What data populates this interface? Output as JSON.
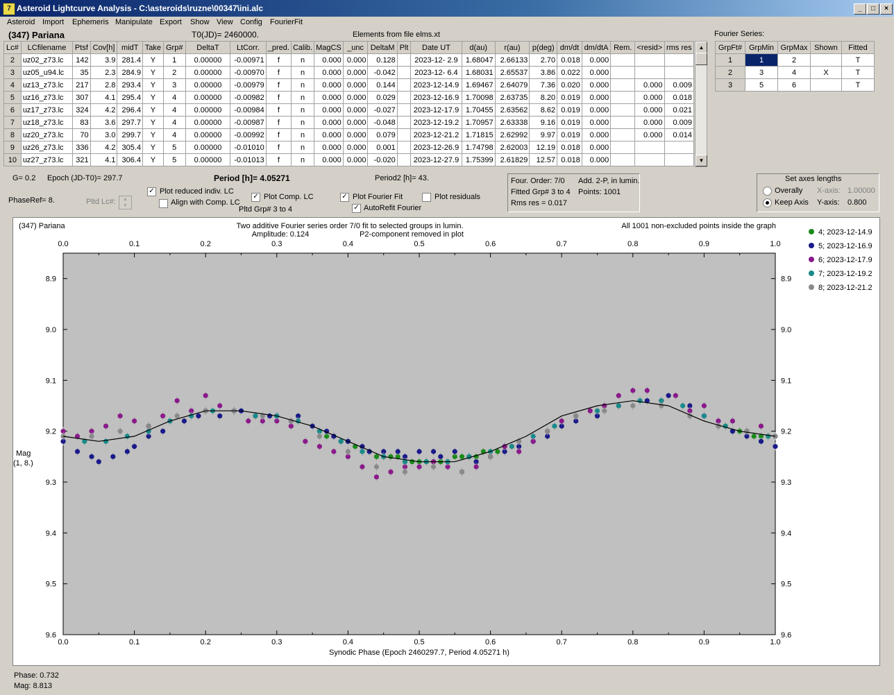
{
  "window": {
    "title": "Asteroid Lightcurve Analysis - C:\\asteroids\\ruzne\\00347\\ini.alc"
  },
  "menu": [
    "Asteroid",
    "Import",
    "Ephemeris",
    "Manipulate",
    "Export",
    "Show",
    "View",
    "Config",
    "FourierFit"
  ],
  "header": {
    "asteroid": "(347) Pariana",
    "t0": "T0(JD)= 2460000.",
    "elements": "Elements from file elms.xt",
    "fourier_label": "Fourier Series:"
  },
  "lc_table": {
    "columns": [
      "Lc#",
      "LCfilename",
      "Ptsf",
      "Cov[h]",
      "midT",
      "Take",
      "Grp#",
      "DeltaT",
      "LtCorr.",
      "_pred.",
      "Calib.",
      "MagCS",
      "_unc",
      "DeltaM",
      "Plt",
      "Date UT",
      "d(au)",
      "r(au)",
      "p(deg)",
      "dm/dt",
      "dm/dtA",
      "Rem.",
      "<resid>",
      "rms res"
    ],
    "rows": [
      [
        "2",
        "uz02_z73.lc",
        "142",
        "3.9",
        "281.4",
        "Y",
        "1",
        "0.00000",
        "-0.00971",
        "f",
        "n",
        "0.000",
        "0.000",
        "0.128",
        "",
        "2023-12- 2.9",
        "1.68047",
        "2.66133",
        "2.70",
        "0.018",
        "0.000",
        "",
        "",
        ""
      ],
      [
        "3",
        "uz05_u94.lc",
        "35",
        "2.3",
        "284.9",
        "Y",
        "2",
        "0.00000",
        "-0.00970",
        "f",
        "n",
        "0.000",
        "0.000",
        "-0.042",
        "",
        "2023-12- 6.4",
        "1.68031",
        "2.65537",
        "3.86",
        "0.022",
        "0.000",
        "",
        "",
        ""
      ],
      [
        "4",
        "uz13_z73.lc",
        "217",
        "2.8",
        "293.4",
        "Y",
        "3",
        "0.00000",
        "-0.00979",
        "f",
        "n",
        "0.000",
        "0.000",
        "0.144",
        "",
        "2023-12-14.9",
        "1.69467",
        "2.64079",
        "7.36",
        "0.020",
        "0.000",
        "",
        "0.000",
        "0.009"
      ],
      [
        "5",
        "uz16_z73.lc",
        "307",
        "4.1",
        "295.4",
        "Y",
        "4",
        "0.00000",
        "-0.00982",
        "f",
        "n",
        "0.000",
        "0.000",
        "0.029",
        "",
        "2023-12-16.9",
        "1.70098",
        "2.63735",
        "8.20",
        "0.019",
        "0.000",
        "",
        "0.000",
        "0.018"
      ],
      [
        "6",
        "uz17_z73.lc",
        "324",
        "4.2",
        "296.4",
        "Y",
        "4",
        "0.00000",
        "-0.00984",
        "f",
        "n",
        "0.000",
        "0.000",
        "-0.027",
        "",
        "2023-12-17.9",
        "1.70455",
        "2.63562",
        "8.62",
        "0.019",
        "0.000",
        "",
        "0.000",
        "0.021"
      ],
      [
        "7",
        "uz18_z73.lc",
        "83",
        "3.6",
        "297.7",
        "Y",
        "4",
        "0.00000",
        "-0.00987",
        "f",
        "n",
        "0.000",
        "0.000",
        "-0.048",
        "",
        "2023-12-19.2",
        "1.70957",
        "2.63338",
        "9.16",
        "0.019",
        "0.000",
        "",
        "0.000",
        "0.009"
      ],
      [
        "8",
        "uz20_z73.lc",
        "70",
        "3.0",
        "299.7",
        "Y",
        "4",
        "0.00000",
        "-0.00992",
        "f",
        "n",
        "0.000",
        "0.000",
        "0.079",
        "",
        "2023-12-21.2",
        "1.71815",
        "2.62992",
        "9.97",
        "0.019",
        "0.000",
        "",
        "0.000",
        "0.014"
      ],
      [
        "9",
        "uz26_z73.lc",
        "336",
        "4.2",
        "305.4",
        "Y",
        "5",
        "0.00000",
        "-0.01010",
        "f",
        "n",
        "0.000",
        "0.000",
        "0.001",
        "",
        "2023-12-26.9",
        "1.74798",
        "2.62003",
        "12.19",
        "0.018",
        "0.000",
        "",
        "",
        ""
      ],
      [
        "10",
        "uz27_z73.lc",
        "321",
        "4.1",
        "306.4",
        "Y",
        "5",
        "0.00000",
        "-0.01013",
        "f",
        "n",
        "0.000",
        "0.000",
        "-0.020",
        "",
        "2023-12-27.9",
        "1.75399",
        "2.61829",
        "12.57",
        "0.018",
        "0.000",
        "",
        "",
        ""
      ]
    ]
  },
  "fourier_table": {
    "columns": [
      "GrpFt#",
      "GrpMin",
      "GrpMax",
      "Shown",
      "Fitted"
    ],
    "rows": [
      [
        "1",
        "1",
        "2",
        "",
        "T"
      ],
      [
        "2",
        "3",
        "4",
        "X",
        "T"
      ],
      [
        "3",
        "5",
        "6",
        "",
        "T"
      ]
    ]
  },
  "controls": {
    "g": "G= 0.2",
    "epoch": "Epoch (JD-T0)= 297.7",
    "period": "Period [h]= 4.05271",
    "period2": "Period2 [h]= 43.",
    "phaseref": "PhaseRef= 8.",
    "pltd_lc": "Pltd Lc#:",
    "plot_reduced": "Plot reduced indiv. LC",
    "align_comp": "Align with Comp. LC",
    "plot_comp": "Plot Comp. LC",
    "pltd_grp": "Pltd Grp#  3   to   4",
    "plot_fourier": "Plot Fourier Fit",
    "plot_residuals": "Plot residuals",
    "autorefit": "AutoRefit Fourier"
  },
  "fit_info": {
    "order": "Four. Order:  7/0",
    "add": "Add. 2-P, in lumin.",
    "fitted": "Fitted Grp# 3 to 4",
    "points": "Points: 1001",
    "rms": "Rms res      = 0.017"
  },
  "axes_panel": {
    "title": "Set axes lengths",
    "overally": "Overally",
    "keep_axis": "Keep Axis",
    "xaxis_label": "X-axis:",
    "xaxis_val": "1.00000",
    "yaxis_label": "Y-axis:",
    "yaxis_val": "0.800"
  },
  "plot_text": {
    "name": "(347) Pariana",
    "desc1": "Two additive Fourier series order 7/0 fit to selected groups in lumin.",
    "desc2": "Amplitude: 0.124",
    "desc3": "P2-component removed in plot",
    "note": "All 1001 non-excluded points inside the graph",
    "ylabel1": "Mag",
    "ylabel2": "(1, 8.)"
  },
  "status": {
    "phase": "Phase:  0.732",
    "mag": "Mag:    8.813"
  },
  "chart_data": {
    "type": "scatter",
    "xlabel": "Synodic Phase (Epoch 2460297.7, Period 4.05271 h)",
    "ylabel": "Mag",
    "xlim": [
      0,
      1
    ],
    "ylim": [
      9.6,
      8.85
    ],
    "x_ticks": [
      0.0,
      0.1,
      0.2,
      0.3,
      0.4,
      0.5,
      0.6,
      0.7,
      0.8,
      0.9,
      1.0
    ],
    "y_ticks": [
      8.9,
      9.0,
      9.1,
      9.2,
      9.3,
      9.4,
      9.5,
      9.6
    ],
    "fit_curve": {
      "x": [
        0.0,
        0.05,
        0.1,
        0.15,
        0.2,
        0.25,
        0.3,
        0.35,
        0.4,
        0.45,
        0.5,
        0.55,
        0.6,
        0.65,
        0.7,
        0.75,
        0.8,
        0.85,
        0.9,
        0.95,
        1.0
      ],
      "y": [
        9.21,
        9.22,
        9.21,
        9.18,
        9.16,
        9.16,
        9.17,
        9.19,
        9.22,
        9.25,
        9.26,
        9.26,
        9.24,
        9.21,
        9.17,
        9.15,
        9.14,
        9.15,
        9.18,
        9.2,
        9.21
      ]
    },
    "series": [
      {
        "name": "4; 2023-12-14.9",
        "color": "#1a8a1a",
        "x": [
          0.36,
          0.37,
          0.38,
          0.39,
          0.4,
          0.41,
          0.42,
          0.43,
          0.44,
          0.45,
          0.46,
          0.47,
          0.48,
          0.49,
          0.5,
          0.51,
          0.52,
          0.53,
          0.54,
          0.55,
          0.56,
          0.57,
          0.58,
          0.59,
          0.6,
          0.61,
          0.62,
          0.92,
          0.93,
          0.94,
          0.95,
          0.96,
          0.97,
          0.98,
          0.99,
          1.0
        ],
        "y": [
          9.2,
          9.21,
          9.21,
          9.22,
          9.22,
          9.23,
          9.24,
          9.24,
          9.25,
          9.25,
          9.25,
          9.25,
          9.26,
          9.26,
          9.26,
          9.26,
          9.26,
          9.26,
          9.26,
          9.25,
          9.25,
          9.25,
          9.25,
          9.24,
          9.24,
          9.24,
          9.23,
          9.19,
          9.19,
          9.2,
          9.2,
          9.2,
          9.21,
          9.21,
          9.21,
          9.21
        ]
      },
      {
        "name": "5; 2023-12-16.9",
        "color": "#1a1a8a",
        "x": [
          0.0,
          0.02,
          0.04,
          0.05,
          0.07,
          0.09,
          0.1,
          0.12,
          0.14,
          0.15,
          0.17,
          0.19,
          0.2,
          0.22,
          0.24,
          0.25,
          0.27,
          0.29,
          0.3,
          0.32,
          0.33,
          0.35,
          0.37,
          0.38,
          0.4,
          0.42,
          0.43,
          0.45,
          0.47,
          0.48,
          0.5,
          0.52,
          0.53,
          0.55,
          0.57,
          0.58,
          0.6,
          0.62,
          0.64,
          0.66,
          0.68,
          0.7,
          0.72,
          0.75,
          0.78,
          0.82,
          0.85,
          0.88,
          0.9,
          0.92,
          0.94,
          0.96,
          0.98,
          1.0
        ],
        "y": [
          9.22,
          9.24,
          9.25,
          9.26,
          9.25,
          9.24,
          9.23,
          9.21,
          9.2,
          9.18,
          9.18,
          9.17,
          9.16,
          9.17,
          9.16,
          9.16,
          9.17,
          9.17,
          9.17,
          9.18,
          9.17,
          9.19,
          9.2,
          9.21,
          9.22,
          9.23,
          9.24,
          9.24,
          9.24,
          9.25,
          9.24,
          9.24,
          9.25,
          9.24,
          9.25,
          9.26,
          9.25,
          9.24,
          9.23,
          9.22,
          9.21,
          9.19,
          9.18,
          9.17,
          9.15,
          9.14,
          9.13,
          9.15,
          9.17,
          9.18,
          9.2,
          9.21,
          9.22,
          9.23
        ]
      },
      {
        "name": "6; 2023-12-17.9",
        "color": "#8a1a8a",
        "x": [
          0.0,
          0.02,
          0.04,
          0.06,
          0.08,
          0.1,
          0.12,
          0.14,
          0.16,
          0.18,
          0.2,
          0.22,
          0.24,
          0.26,
          0.28,
          0.3,
          0.32,
          0.34,
          0.36,
          0.38,
          0.4,
          0.42,
          0.44,
          0.46,
          0.48,
          0.5,
          0.52,
          0.54,
          0.56,
          0.58,
          0.6,
          0.62,
          0.64,
          0.66,
          0.68,
          0.7,
          0.72,
          0.74,
          0.76,
          0.78,
          0.8,
          0.82,
          0.84,
          0.86,
          0.88,
          0.9,
          0.92,
          0.94,
          0.96,
          0.98,
          1.0
        ],
        "y": [
          9.2,
          9.21,
          9.2,
          9.19,
          9.17,
          9.18,
          9.19,
          9.17,
          9.14,
          9.16,
          9.13,
          9.15,
          9.16,
          9.18,
          9.18,
          9.18,
          9.19,
          9.22,
          9.23,
          9.24,
          9.25,
          9.27,
          9.29,
          9.28,
          9.27,
          9.27,
          9.26,
          9.27,
          9.28,
          9.27,
          9.25,
          9.23,
          9.24,
          9.22,
          9.2,
          9.18,
          9.17,
          9.16,
          9.15,
          9.13,
          9.12,
          9.12,
          9.14,
          9.13,
          9.16,
          9.15,
          9.18,
          9.18,
          9.2,
          9.19,
          9.21
        ]
      },
      {
        "name": "7; 2023-12-19.2",
        "color": "#1a8a8a",
        "x": [
          0.0,
          0.03,
          0.06,
          0.09,
          0.12,
          0.15,
          0.18,
          0.21,
          0.24,
          0.27,
          0.3,
          0.33,
          0.36,
          0.39,
          0.42,
          0.45,
          0.48,
          0.51,
          0.54,
          0.57,
          0.6,
          0.63,
          0.66,
          0.69,
          0.72,
          0.75,
          0.78,
          0.81,
          0.84,
          0.87,
          0.9,
          0.93,
          0.96,
          0.99
        ],
        "y": [
          9.21,
          9.22,
          9.22,
          9.21,
          9.2,
          9.18,
          9.17,
          9.16,
          9.16,
          9.17,
          9.17,
          9.18,
          9.2,
          9.22,
          9.24,
          9.25,
          9.26,
          9.26,
          9.26,
          9.25,
          9.24,
          9.23,
          9.21,
          9.19,
          9.17,
          9.16,
          9.15,
          9.14,
          9.14,
          9.15,
          9.17,
          9.19,
          9.2,
          9.21
        ]
      },
      {
        "name": "8; 2023-12-21.2",
        "color": "#8a8a8a",
        "x": [
          0.0,
          0.04,
          0.08,
          0.12,
          0.16,
          0.2,
          0.24,
          0.28,
          0.32,
          0.36,
          0.4,
          0.44,
          0.48,
          0.52,
          0.56,
          0.6,
          0.64,
          0.68,
          0.72,
          0.76,
          0.8,
          0.84,
          0.88,
          0.92,
          0.96,
          1.0
        ],
        "y": [
          9.21,
          9.21,
          9.2,
          9.19,
          9.17,
          9.16,
          9.16,
          9.17,
          9.18,
          9.21,
          9.24,
          9.27,
          9.28,
          9.27,
          9.28,
          9.25,
          9.22,
          9.2,
          9.17,
          9.16,
          9.15,
          9.15,
          9.17,
          9.19,
          9.2,
          9.21
        ]
      }
    ]
  }
}
